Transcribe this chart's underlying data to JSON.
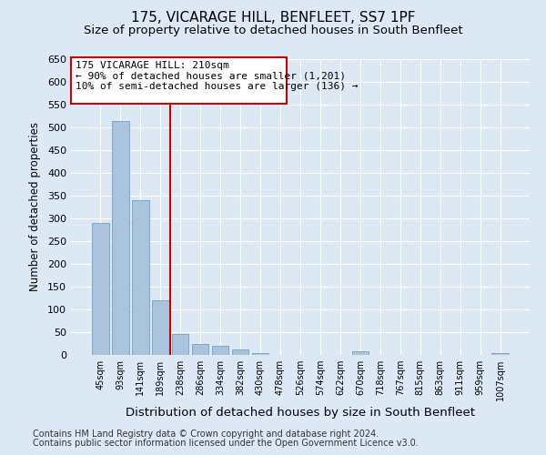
{
  "title_line1": "175, VICARAGE HILL, BENFLEET, SS7 1PF",
  "title_line2": "Size of property relative to detached houses in South Benfleet",
  "xlabel": "Distribution of detached houses by size in South Benfleet",
  "ylabel": "Number of detached properties",
  "footer_line1": "Contains HM Land Registry data © Crown copyright and database right 2024.",
  "footer_line2": "Contains public sector information licensed under the Open Government Licence v3.0.",
  "categories": [
    "45sqm",
    "93sqm",
    "141sqm",
    "189sqm",
    "238sqm",
    "286sqm",
    "334sqm",
    "382sqm",
    "430sqm",
    "478sqm",
    "526sqm",
    "574sqm",
    "622sqm",
    "670sqm",
    "718sqm",
    "767sqm",
    "815sqm",
    "863sqm",
    "911sqm",
    "959sqm",
    "1007sqm"
  ],
  "values": [
    290,
    515,
    340,
    120,
    47,
    25,
    20,
    12,
    5,
    0,
    0,
    0,
    0,
    8,
    0,
    0,
    0,
    0,
    0,
    0,
    5
  ],
  "bar_color": "#aac4de",
  "bar_edge_color": "#7aa8cc",
  "vline_color": "#cc0000",
  "annotation_line1": "175 VICARAGE HILL: 210sqm",
  "annotation_line2": "← 90% of detached houses are smaller (1,201)",
  "annotation_line3": "10% of semi-detached houses are larger (136) →",
  "ylim": [
    0,
    650
  ],
  "yticks": [
    0,
    50,
    100,
    150,
    200,
    250,
    300,
    350,
    400,
    450,
    500,
    550,
    600,
    650
  ],
  "bg_color": "#dce9f5",
  "plot_bg_color": "#dce9f5",
  "title1_fontsize": 11,
  "title2_fontsize": 9.5,
  "xlabel_fontsize": 9.5,
  "ylabel_fontsize": 8.5,
  "annotation_fontsize": 8,
  "footer_fontsize": 7
}
